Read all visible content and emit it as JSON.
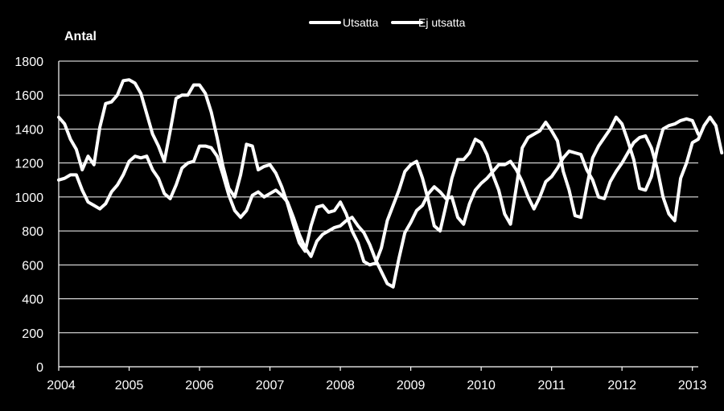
{
  "chart_data": {
    "type": "line",
    "title": "",
    "ylabel": "Antal",
    "xlabel": "",
    "ylim": [
      0,
      1800
    ],
    "yticks": [
      0,
      200,
      400,
      600,
      800,
      1000,
      1200,
      1400,
      1600,
      1800
    ],
    "x_tick_labels": [
      "2004",
      "2005",
      "2006",
      "2007",
      "2008",
      "2009",
      "2010",
      "2011",
      "2012",
      "2013"
    ],
    "x_start_year": 2004,
    "months_per_point": 1,
    "grid": true,
    "legend_position": "top",
    "series": [
      {
        "name": "Utsatta",
        "color": "#ffffff",
        "values": [
          1470,
          1430,
          1340,
          1280,
          1160,
          1240,
          1190,
          1410,
          1550,
          1560,
          1600,
          1685,
          1690,
          1670,
          1610,
          1490,
          1370,
          1300,
          1210,
          1390,
          1580,
          1600,
          1600,
          1660,
          1660,
          1610,
          1500,
          1350,
          1180,
          1050,
          1000,
          1130,
          1310,
          1300,
          1160,
          1180,
          1190,
          1140,
          1060,
          960,
          840,
          730,
          680,
          830,
          940,
          950,
          910,
          920,
          970,
          900,
          800,
          730,
          620,
          600,
          610,
          700,
          860,
          950,
          1040,
          1150,
          1190,
          1210,
          1110,
          980,
          830,
          800,
          950,
          1110,
          1220,
          1220,
          1260,
          1340,
          1320,
          1250,
          1130,
          1040,
          900,
          840,
          1060,
          1290,
          1350,
          1370,
          1390,
          1440,
          1390,
          1330,
          1150,
          1040,
          890,
          880,
          1060,
          1230,
          1300,
          1350,
          1400,
          1470,
          1430,
          1330,
          1220,
          1050,
          1040,
          1120,
          1280,
          1400,
          1420,
          1430,
          1450,
          1460,
          1450,
          1370
        ]
      },
      {
        "name": "Ej utsatta",
        "color": "#ffffff",
        "values": [
          1100,
          1110,
          1130,
          1130,
          1040,
          970,
          950,
          930,
          960,
          1030,
          1070,
          1130,
          1210,
          1240,
          1230,
          1240,
          1160,
          1110,
          1020,
          990,
          1070,
          1170,
          1200,
          1210,
          1300,
          1300,
          1290,
          1240,
          1130,
          1010,
          920,
          880,
          920,
          1010,
          1030,
          1000,
          1020,
          1040,
          1010,
          970,
          880,
          780,
          700,
          650,
          740,
          780,
          800,
          820,
          830,
          860,
          880,
          830,
          790,
          720,
          630,
          560,
          490,
          470,
          640,
          790,
          850,
          920,
          950,
          1020,
          1060,
          1030,
          990,
          1000,
          880,
          840,
          960,
          1040,
          1080,
          1110,
          1150,
          1190,
          1190,
          1210,
          1160,
          1090,
          1000,
          930,
          1000,
          1090,
          1120,
          1170,
          1230,
          1270,
          1260,
          1250,
          1160,
          1100,
          1000,
          990,
          1090,
          1150,
          1200,
          1260,
          1320,
          1350,
          1360,
          1290,
          1170,
          1000,
          900,
          860,
          1110,
          1200,
          1320,
          1340,
          1420,
          1470,
          1420,
          1260
        ]
      }
    ]
  }
}
